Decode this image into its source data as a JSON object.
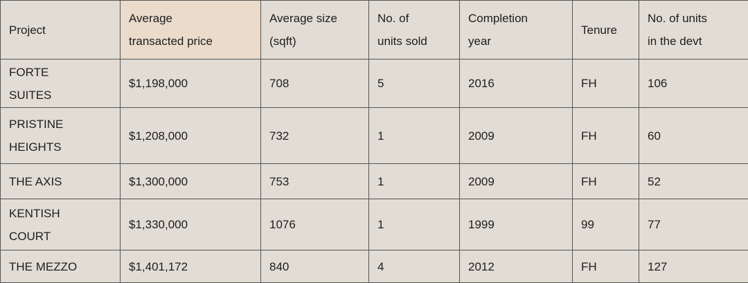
{
  "table": {
    "header": [
      "Project",
      "Average transacted price",
      "Average size (sqft)",
      "No. of units sold",
      "Completion year",
      "Tenure",
      "No. of units in the devt"
    ],
    "rows": [
      [
        "FORTE SUITES",
        "$1,198,000",
        "708",
        "5",
        "2016",
        "FH",
        "106"
      ],
      [
        "PRISTINE HEIGHTS",
        "$1,208,000",
        "732",
        "1",
        "2009",
        "FH",
        "60"
      ],
      [
        "THE AXIS",
        "$1,300,000",
        "753",
        "1",
        "2009",
        "FH",
        "52"
      ],
      [
        "KENTISH COURT",
        "$1,330,000",
        "1076",
        "1",
        "1999",
        "99",
        "77"
      ],
      [
        "THE MEZZO",
        "$1,401,172",
        "840",
        "4",
        "2012",
        "FH",
        "127"
      ]
    ]
  }
}
